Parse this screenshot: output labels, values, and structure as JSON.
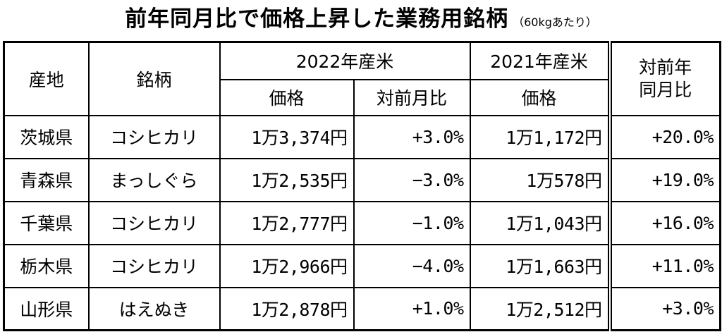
{
  "title": {
    "main": "前年同月比で価格上昇した業務用銘柄",
    "sub": "（60kgあたり）"
  },
  "headers": {
    "region": "産地",
    "brand": "銘柄",
    "y2022": "2022年産米",
    "y2021": "2021年産米",
    "yoy": "対前年\n同月比",
    "price_2022": "価格",
    "mom": "対前月比",
    "price_2021": "価格"
  },
  "rows": [
    {
      "region": "茨城県",
      "brand": "コシヒカリ",
      "price_2022": "1万3,374円",
      "mom": "+3.0%",
      "price_2021": "1万1,172円",
      "yoy": "+20.0%"
    },
    {
      "region": "青森県",
      "brand": "まっしぐら",
      "price_2022": "1万2,535円",
      "mom": "−3.0%",
      "price_2021": "1万578円",
      "yoy": "+19.0%"
    },
    {
      "region": "千葉県",
      "brand": "コシヒカリ",
      "price_2022": "1万2,777円",
      "mom": "−1.0%",
      "price_2021": "1万1,043円",
      "yoy": "+16.0%"
    },
    {
      "region": "栃木県",
      "brand": "コシヒカリ",
      "price_2022": "1万2,966円",
      "mom": "−4.0%",
      "price_2021": "1万1,663円",
      "yoy": "+11.0%"
    },
    {
      "region": "山形県",
      "brand": "はえぬき",
      "price_2022": "1万2,878円",
      "mom": "+1.0%",
      "price_2021": "1万2,512円",
      "yoy": "+3.0%"
    }
  ]
}
